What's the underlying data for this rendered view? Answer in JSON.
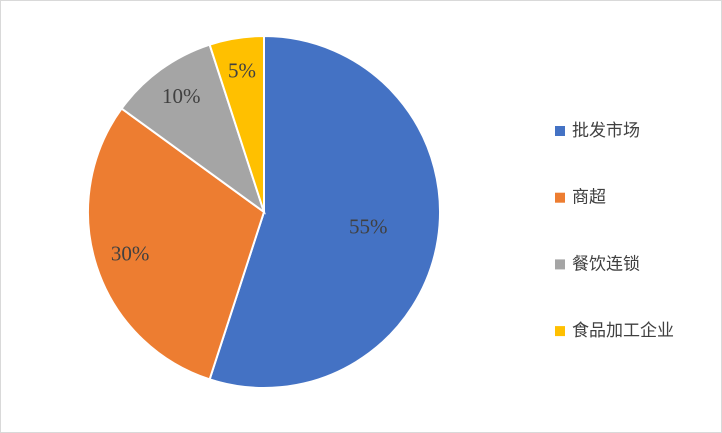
{
  "chart_data": {
    "type": "pie",
    "categories": [
      "批发市场",
      "商超",
      "餐饮连锁",
      "食品加工企业"
    ],
    "values": [
      55,
      30,
      10,
      5
    ],
    "value_labels": [
      "55%",
      "30%",
      "10%",
      "5%"
    ],
    "colors": [
      "#4472c4",
      "#ed7d31",
      "#a5a5a5",
      "#ffc000"
    ],
    "legend": "right"
  }
}
